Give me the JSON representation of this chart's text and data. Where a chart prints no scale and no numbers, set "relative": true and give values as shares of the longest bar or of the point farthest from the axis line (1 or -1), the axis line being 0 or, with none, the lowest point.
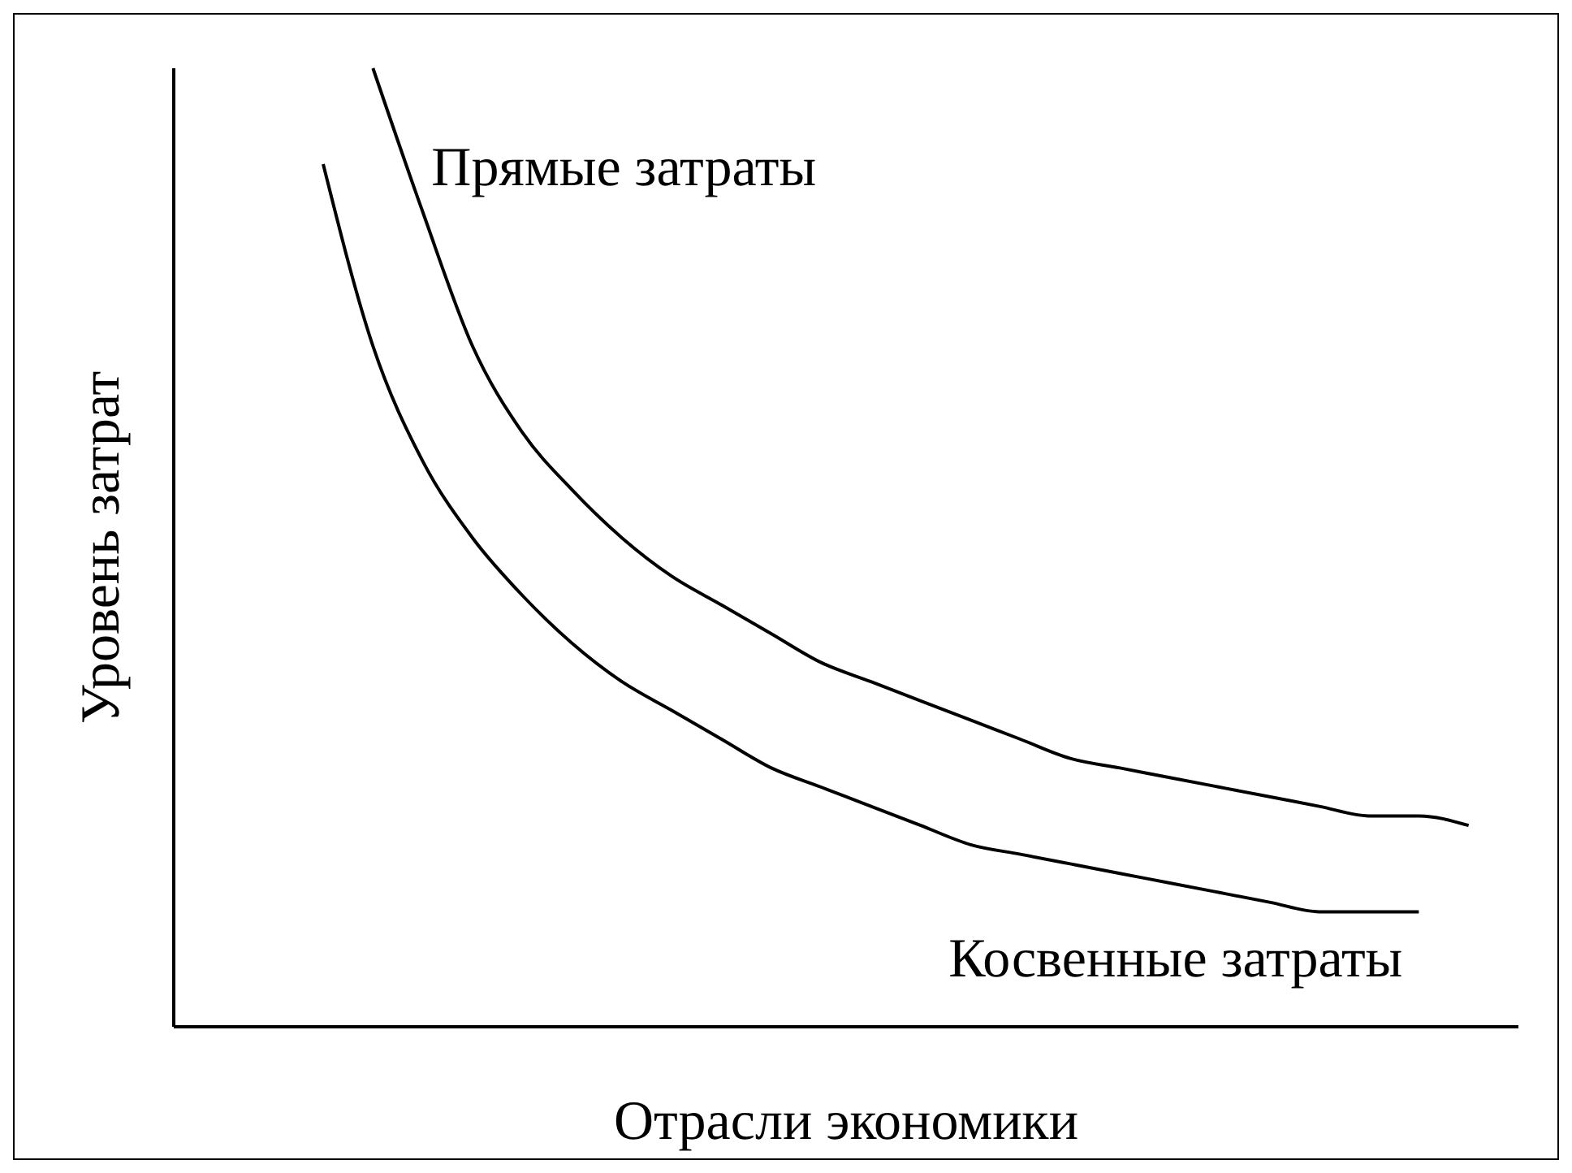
{
  "chart_data": {
    "type": "line",
    "relative": true,
    "xlabel": "Отрасли экономики",
    "ylabel": "Уровень затрат",
    "categories": [
      null,
      null,
      null,
      null,
      null,
      null,
      null,
      null,
      null,
      null,
      null,
      null,
      null,
      null,
      null,
      null,
      null,
      null,
      null,
      null,
      null,
      null,
      null,
      null
    ],
    "series": [
      {
        "name": "Прямые затраты",
        "color": "#000000",
        "values": [
          null,
          1.0,
          0.85,
          0.71,
          0.62,
          0.56,
          0.51,
          0.47,
          0.44,
          0.41,
          0.38,
          0.36,
          0.34,
          0.32,
          0.3,
          0.28,
          0.27,
          0.26,
          0.25,
          0.24,
          0.23,
          0.22,
          0.22,
          0.21
        ]
      },
      {
        "name": "Косвенные затраты",
        "color": "#000000",
        "values": [
          0.9,
          0.71,
          0.59,
          0.51,
          0.45,
          0.4,
          0.36,
          0.33,
          0.3,
          0.27,
          0.25,
          0.23,
          0.21,
          0.19,
          0.18,
          0.17,
          0.16,
          0.15,
          0.14,
          0.13,
          0.12,
          0.12,
          0.12,
          null
        ]
      }
    ],
    "grid": false,
    "legend": false,
    "marker": "none",
    "line_style": "solid"
  }
}
